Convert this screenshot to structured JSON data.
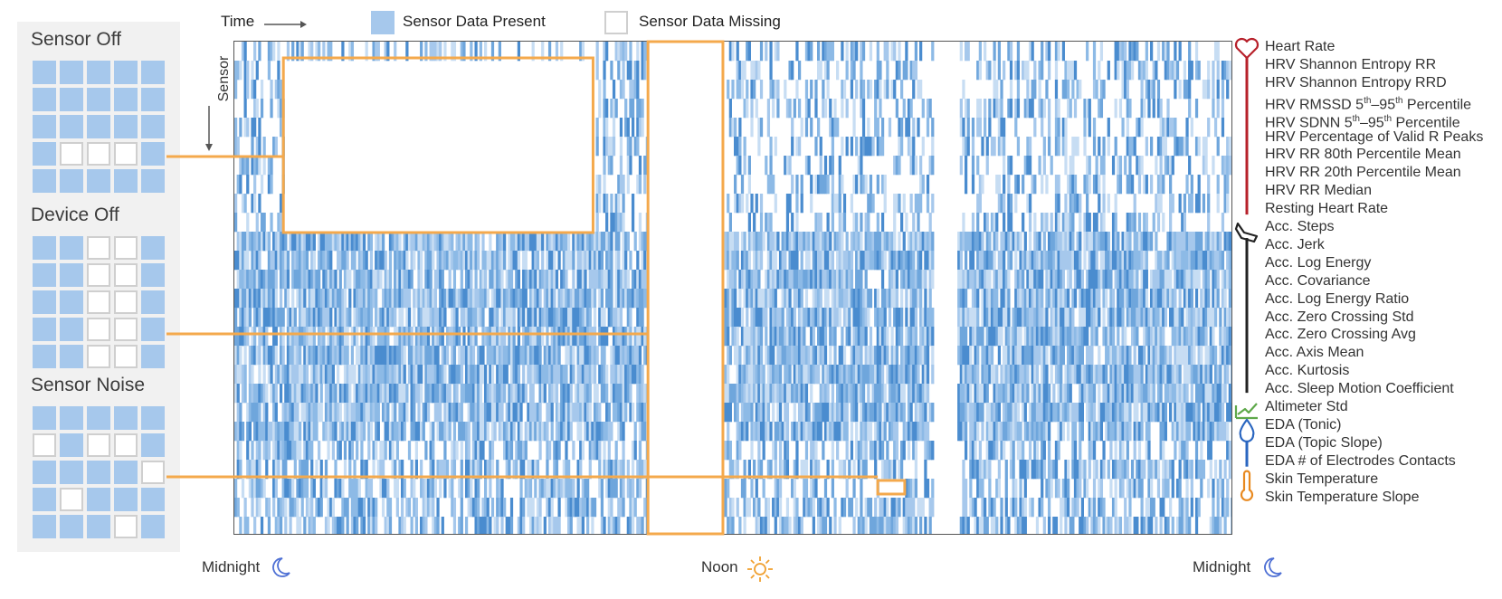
{
  "header": {
    "time_label": "Time",
    "sensor_axis_label": "Sensor",
    "legend_present": "Sensor Data Present",
    "legend_missing": "Sensor Data Missing"
  },
  "colors": {
    "present": "#a6c8ec",
    "present_dark": "#4a8ccf",
    "highlight": "#f4a94c",
    "heart": "#b7202a",
    "accel": "#222222",
    "altimeter": "#5ea84a",
    "eda": "#2a66c0",
    "temperature": "#e8891f",
    "moon": "#4d6fd4",
    "sun": "#f0a030"
  },
  "patterns": [
    {
      "title": "Sensor Off",
      "cells": [
        1,
        1,
        1,
        1,
        1,
        1,
        1,
        1,
        1,
        1,
        1,
        1,
        1,
        1,
        1,
        1,
        0,
        0,
        0,
        1,
        1,
        1,
        1,
        1,
        1
      ]
    },
    {
      "title": "Device Off",
      "cells": [
        1,
        1,
        0,
        0,
        1,
        1,
        1,
        0,
        0,
        1,
        1,
        1,
        0,
        0,
        1,
        1,
        1,
        0,
        0,
        1,
        1,
        1,
        0,
        0,
        1
      ]
    },
    {
      "title": "Sensor Noise",
      "cells": [
        1,
        1,
        1,
        1,
        1,
        0,
        1,
        0,
        0,
        1,
        1,
        1,
        1,
        1,
        0,
        1,
        0,
        1,
        1,
        1,
        1,
        1,
        1,
        0,
        1
      ]
    }
  ],
  "sensors": [
    {
      "name": "Heart Rate",
      "group": "heart",
      "supA": "",
      "midA": "",
      "supB": "",
      "tail": ""
    },
    {
      "name": "HRV Shannon Entropy RR",
      "group": "heart",
      "supA": "",
      "midA": "",
      "supB": "",
      "tail": ""
    },
    {
      "name": "HRV Shannon Entropy RRD",
      "group": "heart",
      "supA": "",
      "midA": "",
      "supB": "",
      "tail": ""
    },
    {
      "name": "HRV RMSSD 5",
      "group": "heart",
      "supA": "th",
      "midA": "–95",
      "supB": "th",
      "tail": " Percentile"
    },
    {
      "name": "HRV SDNN 5",
      "group": "heart",
      "supA": "th",
      "midA": "–95",
      "supB": "th",
      "tail": " Percentile"
    },
    {
      "name": "HRV Percentage of Valid R Peaks",
      "group": "heart",
      "supA": "",
      "midA": "",
      "supB": "",
      "tail": ""
    },
    {
      "name": "HRV RR 80th Percentile Mean",
      "group": "heart",
      "supA": "",
      "midA": "",
      "supB": "",
      "tail": ""
    },
    {
      "name": "HRV RR 20th Percentile Mean",
      "group": "heart",
      "supA": "",
      "midA": "",
      "supB": "",
      "tail": ""
    },
    {
      "name": "HRV RR Median",
      "group": "heart",
      "supA": "",
      "midA": "",
      "supB": "",
      "tail": ""
    },
    {
      "name": "Resting Heart Rate",
      "group": "heart",
      "supA": "",
      "midA": "",
      "supB": "",
      "tail": ""
    },
    {
      "name": "Acc. Steps",
      "group": "accel",
      "supA": "",
      "midA": "",
      "supB": "",
      "tail": ""
    },
    {
      "name": "Acc. Jerk",
      "group": "accel",
      "supA": "",
      "midA": "",
      "supB": "",
      "tail": ""
    },
    {
      "name": "Acc. Log Energy",
      "group": "accel",
      "supA": "",
      "midA": "",
      "supB": "",
      "tail": ""
    },
    {
      "name": "Acc. Covariance",
      "group": "accel",
      "supA": "",
      "midA": "",
      "supB": "",
      "tail": ""
    },
    {
      "name": "Acc. Log Energy Ratio",
      "group": "accel",
      "supA": "",
      "midA": "",
      "supB": "",
      "tail": ""
    },
    {
      "name": "Acc. Zero Crossing Std",
      "group": "accel",
      "supA": "",
      "midA": "",
      "supB": "",
      "tail": ""
    },
    {
      "name": "Acc. Zero Crossing Avg",
      "group": "accel",
      "supA": "",
      "midA": "",
      "supB": "",
      "tail": ""
    },
    {
      "name": "Acc. Axis Mean",
      "group": "accel",
      "supA": "",
      "midA": "",
      "supB": "",
      "tail": ""
    },
    {
      "name": "Acc. Kurtosis",
      "group": "accel",
      "supA": "",
      "midA": "",
      "supB": "",
      "tail": ""
    },
    {
      "name": "Acc. Sleep Motion Coefficient",
      "group": "accel",
      "supA": "",
      "midA": "",
      "supB": "",
      "tail": ""
    },
    {
      "name": "Altimeter Std",
      "group": "altimeter",
      "supA": "",
      "midA": "",
      "supB": "",
      "tail": ""
    },
    {
      "name": "EDA (Tonic)",
      "group": "eda",
      "supA": "",
      "midA": "",
      "supB": "",
      "tail": ""
    },
    {
      "name": "EDA (Topic Slope)",
      "group": "eda",
      "supA": "",
      "midA": "",
      "supB": "",
      "tail": ""
    },
    {
      "name": "EDA # of Electrodes Contacts",
      "group": "eda",
      "supA": "",
      "midA": "",
      "supB": "",
      "tail": ""
    },
    {
      "name": "Skin Temperature",
      "group": "temperature",
      "supA": "",
      "midA": "",
      "supB": "",
      "tail": ""
    },
    {
      "name": "Skin Temperature Slope",
      "group": "temperature",
      "supA": "",
      "midA": "",
      "supB": "",
      "tail": ""
    }
  ],
  "time_axis": {
    "start": "Midnight",
    "middle": "Noon",
    "end": "Midnight"
  },
  "missing_regions": [
    {
      "pattern": "Sensor Off",
      "sensor_from": 1,
      "sensor_to": 9,
      "time_from": 0.05,
      "time_to": 0.36
    },
    {
      "pattern": "Device Off",
      "sensor_from": 0,
      "sensor_to": 25,
      "time_from": 0.415,
      "time_to": 0.49
    },
    {
      "pattern": "Sensor Noise",
      "sensor_from": 23,
      "sensor_to": 23,
      "time_from": 0.645,
      "time_to": 0.672
    }
  ]
}
